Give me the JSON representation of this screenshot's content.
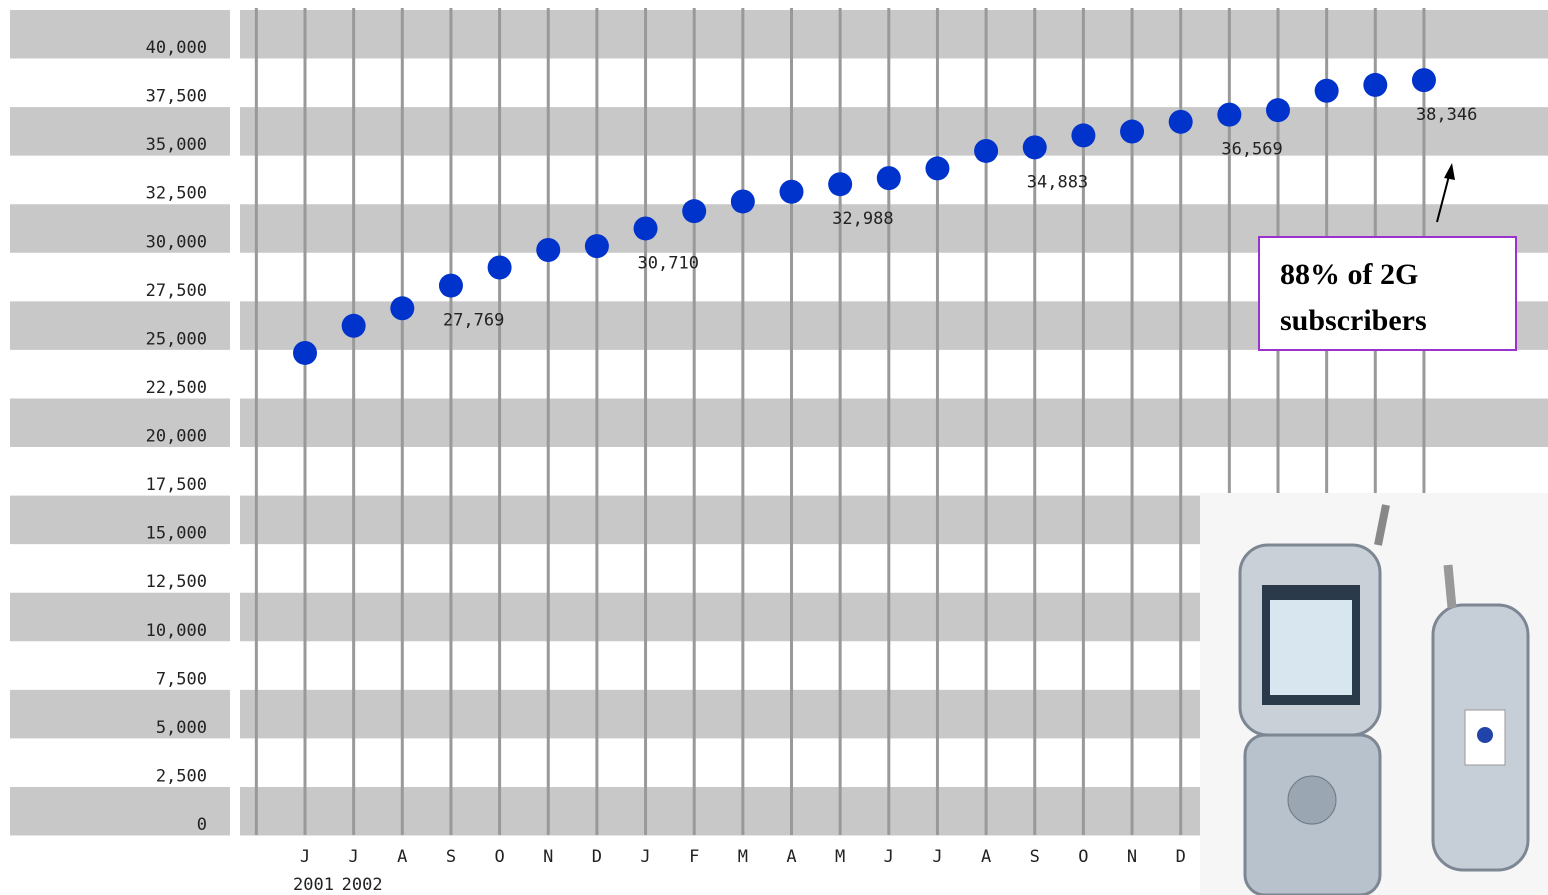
{
  "chart_data": {
    "type": "scatter",
    "categories": [
      "J",
      "J",
      "A",
      "S",
      "O",
      "N",
      "D",
      "J",
      "F",
      "M",
      "A",
      "M",
      "J",
      "J",
      "A",
      "S",
      "O",
      "N",
      "D",
      null,
      null,
      null,
      null,
      null
    ],
    "x_group_labels": [
      "2001",
      "2002"
    ],
    "values": [
      24300,
      25700,
      26600,
      27769,
      28700,
      29600,
      29800,
      30710,
      31600,
      32100,
      32600,
      32988,
      33300,
      33800,
      34700,
      34883,
      35500,
      35700,
      36200,
      36569,
      36800,
      37800,
      38100,
      38346
    ],
    "value_labels": [
      null,
      null,
      null,
      "27,769",
      null,
      null,
      null,
      "30,710",
      null,
      null,
      null,
      "32,988",
      null,
      null,
      null,
      "34,883",
      null,
      null,
      null,
      "36,569",
      null,
      null,
      null,
      "38,346"
    ],
    "color": "#0033cc",
    "ylim": [
      0,
      40000
    ],
    "yticks": [
      0,
      {
        "value": 2500,
        "label": "2,500"
      },
      {
        "value": 5000,
        "label": "5,000"
      },
      {
        "value": 7500,
        "label": "7,500"
      },
      {
        "value": 10000,
        "label": "10,000"
      },
      {
        "value": 12500,
        "label": "12,500"
      },
      {
        "value": 15000,
        "label": "15,000"
      },
      {
        "value": 17500,
        "label": "17,500"
      },
      {
        "value": 20000,
        "label": "20,000"
      },
      {
        "value": 22500,
        "label": "22,500"
      },
      {
        "value": 25000,
        "label": "25,000"
      },
      {
        "value": 27500,
        "label": "27,500"
      },
      {
        "value": 30000,
        "label": "30,000"
      },
      {
        "value": 32500,
        "label": "32,500"
      },
      {
        "value": 35000,
        "label": "35,000"
      },
      {
        "value": 37500,
        "label": "37,500"
      },
      {
        "value": 40000,
        "label": "40,000"
      }
    ],
    "grid": true,
    "annotation": [
      "88% of 2G",
      "subscribers"
    ]
  }
}
